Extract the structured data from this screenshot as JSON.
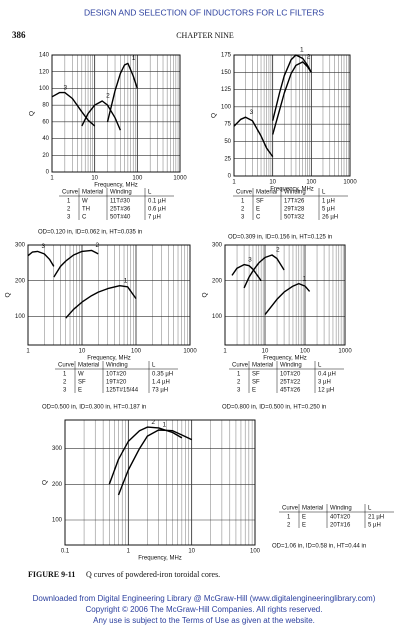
{
  "header": {
    "running_title": "DESIGN AND SELECTION OF INDUCTORS FOR LC FILTERS",
    "page_number": "386",
    "chapter": "CHAPTER NINE"
  },
  "chart_data": [
    {
      "type": "line",
      "xscale": "log",
      "grid": true,
      "xlabel": "Frequency, MHz",
      "ylabel": "Q",
      "xlim": [
        1,
        1000
      ],
      "xticks": [
        1,
        10,
        100,
        1000
      ],
      "ylim": [
        0,
        140
      ],
      "yticks": [
        0,
        20,
        40,
        60,
        80,
        100,
        120,
        140
      ],
      "series": [
        {
          "name": "1",
          "color": "#000000",
          "x": [
            20,
            25,
            30,
            40,
            50,
            60,
            80,
            100
          ],
          "values": [
            60,
            80,
            97,
            118,
            128,
            130,
            115,
            100
          ]
        },
        {
          "name": "2",
          "color": "#000000",
          "x": [
            5,
            7,
            10,
            15,
            20,
            30,
            40
          ],
          "values": [
            55,
            70,
            80,
            85,
            80,
            65,
            50
          ]
        },
        {
          "name": "3",
          "color": "#000000",
          "x": [
            1,
            1.5,
            2,
            3,
            5,
            7,
            10
          ],
          "values": [
            90,
            95,
            95,
            88,
            72,
            62,
            55
          ]
        }
      ],
      "table": {
        "columns": [
          "Curve",
          "Material",
          "Winding",
          "L"
        ],
        "rows": [
          [
            "1",
            "W",
            "11T#30",
            "0.1 µH"
          ],
          [
            "2",
            "TH",
            "25T#36",
            "0.6 µH"
          ],
          [
            "3",
            "C",
            "50T#40",
            "7 µH"
          ]
        ]
      },
      "note": "OD=0.120 in, ID=0.062 in, HT=0.035 in"
    },
    {
      "type": "line",
      "xscale": "log",
      "grid": true,
      "xlabel": "Frequency, MHz",
      "ylabel": "Q",
      "xlim": [
        1,
        1000
      ],
      "xticks": [
        1,
        10,
        100,
        1000
      ],
      "ylim": [
        0,
        175
      ],
      "yticks": [
        0,
        25,
        50,
        75,
        100,
        125,
        150,
        175
      ],
      "series": [
        {
          "name": "1",
          "color": "#000000",
          "x": [
            10,
            15,
            20,
            30,
            40,
            60,
            80,
            100
          ],
          "values": [
            80,
            120,
            145,
            168,
            175,
            170,
            160,
            150
          ]
        },
        {
          "name": "2",
          "color": "#000000",
          "x": [
            10,
            15,
            20,
            30,
            40,
            60,
            80,
            100
          ],
          "values": [
            60,
            95,
            120,
            148,
            160,
            165,
            158,
            150
          ]
        },
        {
          "name": "3",
          "color": "#000000",
          "x": [
            1,
            1.5,
            2,
            3,
            5,
            7,
            10
          ],
          "values": [
            72,
            82,
            85,
            80,
            58,
            40,
            28
          ]
        }
      ],
      "table": {
        "columns": [
          "Curve",
          "Material",
          "Winding",
          "L"
        ],
        "rows": [
          [
            "1",
            "SF",
            "17T#26",
            "1 µH"
          ],
          [
            "2",
            "E",
            "29T#28",
            "5 µH"
          ],
          [
            "3",
            "C",
            "50T#32",
            "26 µH"
          ]
        ]
      },
      "note": "OD=0.309 in, ID=0.156 in, HT=0.125 in"
    },
    {
      "type": "line",
      "xscale": "log",
      "grid": true,
      "xlabel": "Frequency, MHz",
      "ylabel": "Q",
      "xlim": [
        1,
        1000
      ],
      "xticks": [
        1,
        10,
        100,
        1000
      ],
      "ylim": [
        20,
        300
      ],
      "yticks": [
        100,
        200,
        300
      ],
      "series": [
        {
          "name": "1",
          "color": "#000000",
          "x": [
            5,
            7,
            10,
            15,
            20,
            30,
            50,
            70,
            100
          ],
          "values": [
            95,
            120,
            140,
            158,
            168,
            178,
            186,
            183,
            150
          ]
        },
        {
          "name": "2",
          "color": "#000000",
          "x": [
            3,
            4,
            5,
            7,
            10,
            15,
            20
          ],
          "values": [
            210,
            240,
            255,
            272,
            282,
            285,
            275
          ]
        },
        {
          "name": "3",
          "color": "#000000",
          "x": [
            1,
            1.2,
            1.5,
            2,
            2.5,
            3
          ],
          "values": [
            270,
            280,
            282,
            275,
            260,
            240
          ]
        }
      ],
      "table": {
        "columns": [
          "Curve",
          "Material",
          "Winding",
          "L"
        ],
        "rows": [
          [
            "1",
            "W",
            "10T#20",
            "0.35 µH"
          ],
          [
            "2",
            "SF",
            "19T#20",
            "1.4 µH"
          ],
          [
            "3",
            "E",
            "125T#15/44",
            "73 µH"
          ]
        ]
      },
      "note": "OD=0.500 in, ID=0.300 in, HT=0.187 in"
    },
    {
      "type": "line",
      "xscale": "log",
      "grid": true,
      "xlabel": "Frequency, MHz",
      "ylabel": "Q",
      "xlim": [
        1,
        1000
      ],
      "xticks": [
        1,
        10,
        100,
        1000
      ],
      "ylim": [
        20,
        300
      ],
      "yticks": [
        100,
        200,
        300
      ],
      "series": [
        {
          "name": "1",
          "color": "#000000",
          "x": [
            10,
            15,
            20,
            30,
            50,
            70,
            100,
            130
          ],
          "values": [
            105,
            130,
            148,
            168,
            185,
            192,
            185,
            170
          ]
        },
        {
          "name": "2",
          "color": "#000000",
          "x": [
            3,
            4,
            5,
            7,
            10,
            15,
            20,
            30
          ],
          "values": [
            180,
            210,
            228,
            250,
            265,
            272,
            262,
            230
          ]
        },
        {
          "name": "3",
          "color": "#000000",
          "x": [
            1.5,
            2,
            3,
            4,
            5,
            6,
            8
          ],
          "values": [
            215,
            235,
            245,
            242,
            232,
            220,
            200
          ]
        }
      ],
      "table": {
        "columns": [
          "Curve",
          "Material",
          "Winding",
          "L"
        ],
        "rows": [
          [
            "1",
            "SF",
            "10T#20",
            "0.4 µH"
          ],
          [
            "2",
            "SF",
            "25T#22",
            "3 µH"
          ],
          [
            "3",
            "E",
            "45T#26",
            "12 µH"
          ]
        ]
      },
      "note": "OD=0.800 in, ID=0.500 in, HT=0.250 in"
    },
    {
      "type": "line",
      "xscale": "log",
      "grid": true,
      "xlabel": "Frequency, MHz",
      "ylabel": "Q",
      "xlim": [
        0.1,
        100
      ],
      "xticks": [
        0.1,
        1,
        10,
        100
      ],
      "ylim": [
        30,
        380
      ],
      "yticks": [
        100,
        200,
        300
      ],
      "series": [
        {
          "name": "1",
          "color": "#000000",
          "x": [
            0.7,
            1,
            1.5,
            2,
            3,
            5,
            7,
            10
          ],
          "values": [
            170,
            240,
            300,
            335,
            352,
            350,
            338,
            325
          ]
        },
        {
          "name": "2",
          "color": "#000000",
          "x": [
            0.5,
            0.7,
            1,
            1.5,
            2,
            3,
            5,
            7
          ],
          "values": [
            200,
            270,
            320,
            350,
            360,
            358,
            345,
            330
          ]
        }
      ],
      "table": {
        "columns": [
          "Curve",
          "Material",
          "Winding",
          "L"
        ],
        "rows": [
          [
            "1",
            "E",
            "40T#20",
            "21 µH"
          ],
          [
            "2",
            "E",
            "20T#16",
            "5 µH"
          ]
        ]
      },
      "note": "OD=1.06 in, ID=0.58 in, HT=0.44 in"
    }
  ],
  "caption": {
    "label": "FIGURE 9-11",
    "text": "Q curves of powdered-iron toroidal cores."
  },
  "footer": {
    "lines": [
      "Downloaded from Digital Engineering Library @ McGraw-Hill (www.digitalengineeringlibrary.com)",
      "Copyright © 2006 The McGraw-Hill Companies. All rights reserved.",
      "Any use is subject to the Terms of Use as given at the website."
    ]
  }
}
